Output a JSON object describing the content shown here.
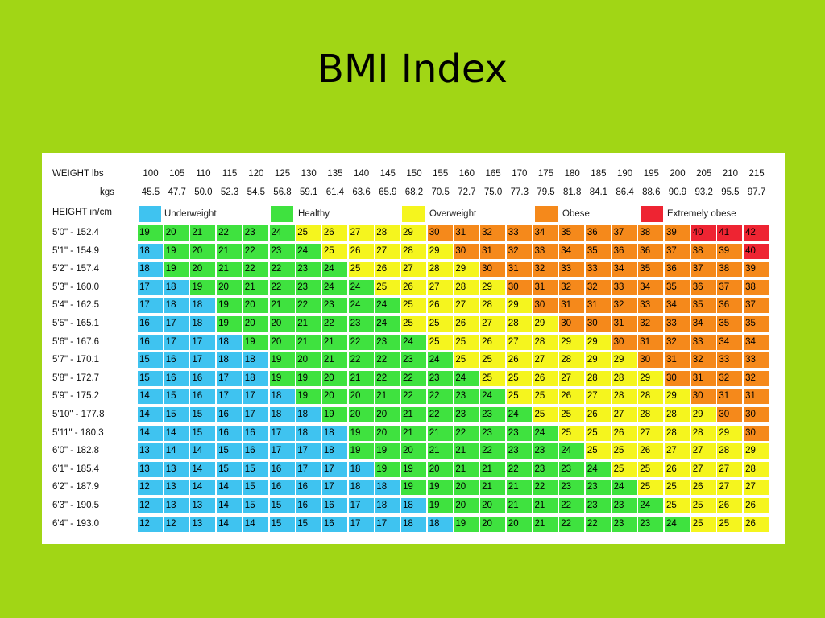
{
  "title": "BMI Index",
  "labels": {
    "weight_lbs": "WEIGHT lbs",
    "kgs": "kgs",
    "height": "HEIGHT in/cm"
  },
  "legend": [
    {
      "label": "Underweight",
      "color": "#3fc3f0"
    },
    {
      "label": "Healthy",
      "color": "#3fe23f"
    },
    {
      "label": "Overweight",
      "color": "#f5f51e"
    },
    {
      "label": "Obese",
      "color": "#f5891b"
    },
    {
      "label": "Extremely obese",
      "color": "#ee2432"
    }
  ],
  "chart_data": {
    "type": "heatmap",
    "title": "BMI Index",
    "x_lbs": [
      "100",
      "105",
      "110",
      "115",
      "120",
      "125",
      "130",
      "135",
      "140",
      "145",
      "150",
      "155",
      "160",
      "165",
      "170",
      "175",
      "180",
      "185",
      "190",
      "195",
      "200",
      "205",
      "210",
      "215"
    ],
    "x_kgs": [
      "45.5",
      "47.7",
      "50.0",
      "52.3",
      "54.5",
      "56.8",
      "59.1",
      "61.4",
      "63.6",
      "65.9",
      "68.2",
      "70.5",
      "72.7",
      "75.0",
      "77.3",
      "79.5",
      "81.8",
      "84.1",
      "86.4",
      "88.6",
      "90.9",
      "93.2",
      "95.5",
      "97.7"
    ],
    "rows": [
      {
        "height": "5'0\" - 152.4",
        "values": [
          19,
          20,
          21,
          22,
          23,
          24,
          25,
          26,
          27,
          28,
          29,
          30,
          31,
          32,
          33,
          34,
          35,
          36,
          37,
          38,
          39,
          40,
          41,
          42
        ]
      },
      {
        "height": "5'1\" - 154.9",
        "values": [
          18,
          19,
          20,
          21,
          22,
          23,
          24,
          25,
          26,
          27,
          28,
          29,
          30,
          31,
          32,
          33,
          34,
          35,
          36,
          36,
          37,
          38,
          39,
          40
        ]
      },
      {
        "height": "5'2\" - 157.4",
        "values": [
          18,
          19,
          20,
          21,
          22,
          22,
          23,
          24,
          25,
          26,
          27,
          28,
          29,
          30,
          31,
          32,
          33,
          33,
          34,
          35,
          36,
          37,
          38,
          39
        ]
      },
      {
        "height": "5'3\" - 160.0",
        "values": [
          17,
          18,
          19,
          20,
          21,
          22,
          23,
          24,
          24,
          25,
          26,
          27,
          28,
          29,
          30,
          31,
          32,
          32,
          33,
          34,
          35,
          36,
          37,
          38
        ]
      },
      {
        "height": "5'4\" - 162.5",
        "values": [
          17,
          18,
          18,
          19,
          20,
          21,
          22,
          23,
          24,
          24,
          25,
          26,
          27,
          28,
          29,
          30,
          31,
          31,
          32,
          33,
          34,
          35,
          36,
          37
        ]
      },
      {
        "height": "5'5\" - 165.1",
        "values": [
          16,
          17,
          18,
          19,
          20,
          20,
          21,
          22,
          23,
          24,
          25,
          25,
          26,
          27,
          28,
          29,
          30,
          30,
          31,
          32,
          33,
          34,
          35,
          35
        ]
      },
      {
        "height": "5'6\" - 167.6",
        "values": [
          16,
          17,
          17,
          18,
          19,
          20,
          21,
          21,
          22,
          23,
          24,
          25,
          25,
          26,
          27,
          28,
          29,
          29,
          30,
          31,
          32,
          33,
          34,
          34
        ]
      },
      {
        "height": "5'7\" - 170.1",
        "values": [
          15,
          16,
          17,
          18,
          18,
          19,
          20,
          21,
          22,
          22,
          23,
          24,
          25,
          25,
          26,
          27,
          28,
          29,
          29,
          30,
          31,
          32,
          33,
          33
        ]
      },
      {
        "height": "5'8\" - 172.7",
        "values": [
          15,
          16,
          16,
          17,
          18,
          19,
          19,
          20,
          21,
          22,
          22,
          23,
          24,
          25,
          25,
          26,
          27,
          28,
          28,
          29,
          30,
          31,
          32,
          32
        ]
      },
      {
        "height": "5'9\" - 175.2",
        "values": [
          14,
          15,
          16,
          17,
          17,
          18,
          19,
          20,
          20,
          21,
          22,
          22,
          23,
          24,
          25,
          25,
          26,
          27,
          28,
          28,
          29,
          30,
          31,
          31
        ]
      },
      {
        "height": "5'10\" - 177.8",
        "values": [
          14,
          15,
          15,
          16,
          17,
          18,
          18,
          19,
          20,
          20,
          21,
          22,
          23,
          23,
          24,
          25,
          25,
          26,
          27,
          28,
          28,
          29,
          30,
          30
        ]
      },
      {
        "height": "5'11\" - 180.3",
        "values": [
          14,
          14,
          15,
          16,
          16,
          17,
          18,
          18,
          19,
          20,
          21,
          21,
          22,
          23,
          23,
          24,
          25,
          25,
          26,
          27,
          28,
          28,
          29,
          30
        ]
      },
      {
        "height": "6'0\" - 182.8",
        "values": [
          13,
          14,
          14,
          15,
          16,
          17,
          17,
          18,
          19,
          19,
          20,
          21,
          21,
          22,
          23,
          23,
          24,
          25,
          25,
          26,
          27,
          27,
          28,
          29
        ]
      },
      {
        "height": "6'1\" - 185.4",
        "values": [
          13,
          13,
          14,
          15,
          15,
          16,
          17,
          17,
          18,
          19,
          19,
          20,
          21,
          21,
          22,
          23,
          23,
          24,
          25,
          25,
          26,
          27,
          27,
          28
        ]
      },
      {
        "height": "6'2\" - 187.9",
        "values": [
          12,
          13,
          14,
          14,
          15,
          16,
          16,
          17,
          18,
          18,
          19,
          19,
          20,
          21,
          21,
          22,
          23,
          23,
          24,
          25,
          25,
          26,
          27,
          27
        ]
      },
      {
        "height": "6'3\" - 190.5",
        "values": [
          12,
          13,
          13,
          14,
          15,
          15,
          16,
          16,
          17,
          18,
          18,
          19,
          20,
          20,
          21,
          21,
          22,
          23,
          23,
          24,
          25,
          25,
          26,
          26
        ]
      },
      {
        "height": "6'4\" - 193.0",
        "values": [
          12,
          12,
          13,
          14,
          14,
          15,
          15,
          16,
          17,
          17,
          18,
          18,
          19,
          20,
          20,
          21,
          22,
          22,
          23,
          23,
          24,
          25,
          25,
          26
        ]
      }
    ]
  }
}
